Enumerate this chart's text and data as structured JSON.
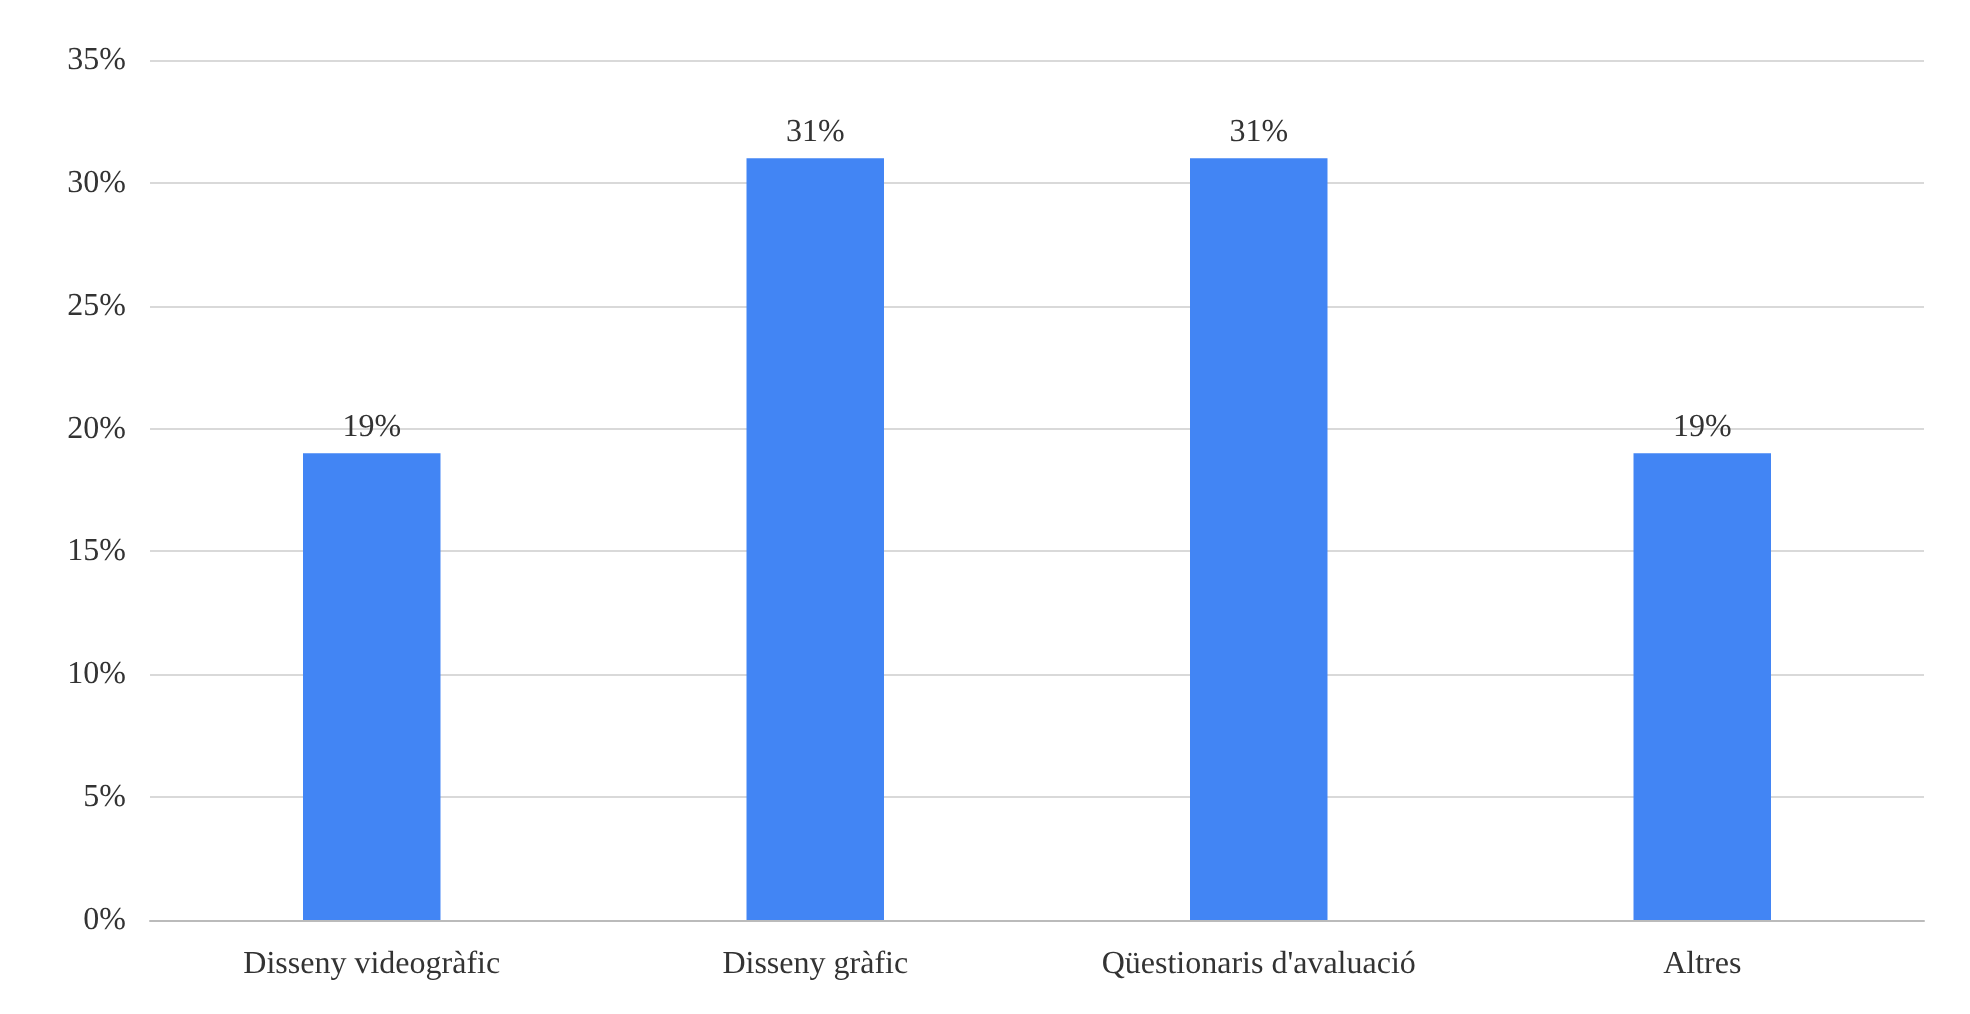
{
  "chart_data": {
    "type": "bar",
    "categories": [
      "Disseny videogràfic",
      "Disseny gràfic",
      "Qüestionaris d'avaluació",
      "Altres"
    ],
    "values": [
      19,
      31,
      31,
      19
    ],
    "color": "#4285f4",
    "value_labels": [
      "19%",
      "31%",
      "31%",
      "19%"
    ],
    "ylim": [
      0,
      35
    ],
    "yticks": [
      {
        "value": 0,
        "label": "0%"
      },
      {
        "value": 5,
        "label": "5%"
      },
      {
        "value": 10,
        "label": "10%"
      },
      {
        "value": 15,
        "label": "15%"
      },
      {
        "value": 20,
        "label": "20%"
      },
      {
        "value": 25,
        "label": "25%"
      },
      {
        "value": 30,
        "label": "30%"
      },
      {
        "value": 35,
        "label": "35%"
      }
    ],
    "grid": "y"
  }
}
